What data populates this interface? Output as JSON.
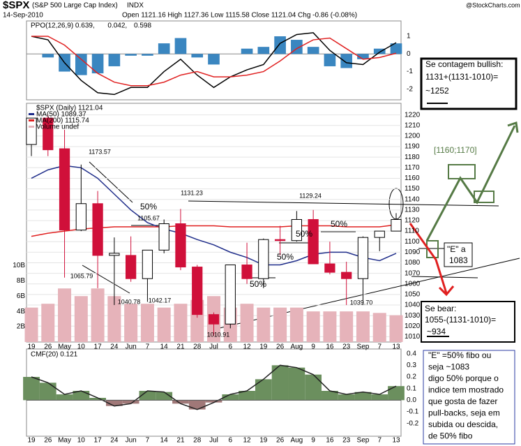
{
  "header": {
    "symbol": "$SPX",
    "name": "(S&P 500 Large Cap Index)",
    "exchange": "INDX",
    "date": "14-Sep-2010",
    "quote": "Open 1121.16  High 1127.36  Low 1115.58  Close 1121.04  Chg -0.86 (-0.08%)",
    "watermark": "@StockCharts.com"
  },
  "chart_data": [
    {
      "type": "line",
      "series": [
        {
          "name": "PPO(12,26,9) 0.639,",
          "color": "#000000",
          "values": [
            1.0,
            0.8,
            -0.5,
            -1.5,
            -2.2,
            -2.3,
            -1.9,
            -1.9,
            -1.0,
            -0.3,
            -1.2,
            -1.9,
            -1.3,
            -0.9,
            -0.6,
            0.6,
            1.1,
            1.2,
            0.2,
            -0.5,
            -0.6,
            0.1,
            0.639
          ]
        },
        {
          "name": "0.042,",
          "color": "#e02020",
          "values": [
            1.0,
            1.0,
            0.5,
            -0.3,
            -1.1,
            -1.6,
            -1.8,
            -1.8,
            -1.6,
            -1.2,
            -1.0,
            -1.3,
            -1.3,
            -1.2,
            -1.0,
            -0.4,
            0.3,
            0.8,
            0.9,
            0.3,
            -0.3,
            -0.2,
            0.042
          ]
        },
        {
          "name": "0.598",
          "color": "#3a86c0",
          "kind": "bar",
          "values": [
            0.0,
            -0.2,
            -1.0,
            -1.2,
            -1.1,
            -0.7,
            -0.1,
            -0.1,
            0.6,
            0.9,
            -0.2,
            -0.6,
            0.0,
            0.3,
            0.4,
            1.0,
            0.8,
            0.4,
            -0.7,
            -0.8,
            -0.3,
            0.3,
            0.598
          ]
        }
      ],
      "ylim": [
        -2.6,
        1.87
      ],
      "yticks": [
        1,
        0,
        -1,
        -2
      ]
    },
    {
      "type": "candlestick",
      "categories": [
        "19",
        "26",
        "May",
        "10",
        "17",
        "24",
        "Jun",
        "7",
        "14",
        "21",
        "28",
        "Jul",
        "6",
        "12",
        "19",
        "26",
        "Aug",
        "9",
        "16",
        "23",
        "Sep",
        "7",
        "13"
      ],
      "name": "$SPX (Daily) 1121.04",
      "open": [
        1192,
        1217,
        1188,
        1111,
        1136,
        1087,
        1087,
        1065,
        1092,
        1117,
        1076,
        1031,
        1022,
        1078,
        1065,
        1102,
        1101,
        1121,
        1079,
        1071,
        1065,
        1104,
        1110
      ],
      "high": [
        1217,
        1220,
        1206,
        1173,
        1148,
        1104,
        1105,
        1092,
        1121,
        1131,
        1078,
        1033,
        1078,
        1099,
        1103,
        1115,
        1129,
        1130,
        1100,
        1081,
        1105,
        1110,
        1127
      ],
      "low": [
        1181,
        1181,
        1066,
        1110,
        1056,
        1040,
        1062,
        1043,
        1089,
        1073,
        1028,
        1011,
        1018,
        1060,
        1056,
        1087,
        1100,
        1079,
        1069,
        1040,
        1040,
        1091,
        1110
      ],
      "close": [
        1217,
        1187,
        1111,
        1136,
        1087,
        1089,
        1065,
        1092,
        1117,
        1076,
        1031,
        1022,
        1078,
        1065,
        1102,
        1101,
        1121,
        1079,
        1071,
        1065,
        1104,
        1110,
        1121
      ],
      "series": [
        {
          "name": "MA(50) 1089.37",
          "color": "#1f2d8a",
          "values": [
            1160,
            1168,
            1172,
            1170,
            1160,
            1145,
            1130,
            1118,
            1112,
            1108,
            1102,
            1097,
            1090,
            1085,
            1078,
            1078,
            1082,
            1088,
            1090,
            1090,
            1085,
            1082,
            1089
          ]
        },
        {
          "name": "MA(200) 1115.74",
          "color": "#e02020",
          "values": [
            1105,
            1108,
            1110,
            1112,
            1113,
            1114,
            1114,
            1114,
            1114,
            1115,
            1115,
            1115,
            1114,
            1114,
            1114,
            1114,
            1115,
            1115,
            1115,
            1114,
            1114,
            1114,
            1116
          ]
        },
        {
          "name": "Volume undef",
          "color": "#e6b3ba",
          "axis": "y2",
          "values": [
            4.5,
            5,
            7,
            6,
            7,
            6,
            5,
            5,
            4.5,
            5,
            5.5,
            6,
            4.5,
            5,
            4.5,
            4.5,
            4.5,
            4,
            4,
            4,
            4,
            3.8,
            3.5
          ]
        }
      ],
      "ylim": [
        1005,
        1231
      ],
      "yticks": [
        1010,
        1020,
        1030,
        1040,
        1050,
        1060,
        1070,
        1080,
        1090,
        1100,
        1110,
        1120,
        1130,
        1140,
        1150,
        1160,
        1170,
        1180,
        1190,
        1200,
        1210,
        1220
      ],
      "y2lim": [
        0,
        31.2
      ],
      "y2ticks": [
        {
          "value": 2,
          "label": "2B"
        },
        {
          "value": 4,
          "label": "4B"
        },
        {
          "value": 6,
          "label": "6B"
        },
        {
          "value": 8,
          "label": "8B"
        },
        {
          "value": 10,
          "label": "10B"
        }
      ],
      "annotations": [
        "1173.57",
        "1065.79",
        "1040.78",
        "1042.17",
        "1105.67",
        "1131.23",
        "1010.91",
        "1129.24",
        "1039.70",
        "50%",
        "50%",
        "50%",
        "50%",
        "50%"
      ]
    },
    {
      "type": "area",
      "categories": [
        "19",
        "26",
        "May",
        "10",
        "17",
        "24",
        "Jun",
        "7",
        "14",
        "21",
        "28",
        "Jul",
        "6",
        "12",
        "19",
        "26",
        "Aug",
        "9",
        "16",
        "23",
        "Sep",
        "7",
        "13"
      ],
      "series": [
        {
          "name": "CMF(20) 0.121",
          "color": "#6b8f5e",
          "neg_color": "#a07878",
          "values": [
            0.2,
            0.15,
            0.05,
            0.08,
            0.02,
            -0.05,
            -0.03,
            0.08,
            0.07,
            -0.03,
            -0.08,
            -0.02,
            0.05,
            0.08,
            0.18,
            0.3,
            0.28,
            0.22,
            0.08,
            0.05,
            0.07,
            0.05,
            0.121
          ]
        }
      ],
      "ylim": [
        -0.31,
        0.44
      ],
      "yticks": [
        0.4,
        0.3,
        0.2,
        0.1,
        {
          "value": 0,
          "label": "0.0"
        },
        -0.1,
        -0.2
      ]
    }
  ],
  "annotations": {
    "bull": [
      "Se contagem bullish:",
      "1131+(1131-1010)=",
      "~1252"
    ],
    "range": "[1160;1170]",
    "e_box": [
      "\"E\" a",
      "1083"
    ],
    "bear": [
      "Se bear:",
      "1055-(1131-1010)=",
      "~934"
    ],
    "note": [
      "\"E\" =50% fibo ou",
      "seja ~1083",
      "digo 50% porque o",
      "indice tem mostrado",
      "que gosta de fazer",
      "pull-backs, seja em",
      "subida ou descida,",
      "de 50% fibo"
    ]
  }
}
